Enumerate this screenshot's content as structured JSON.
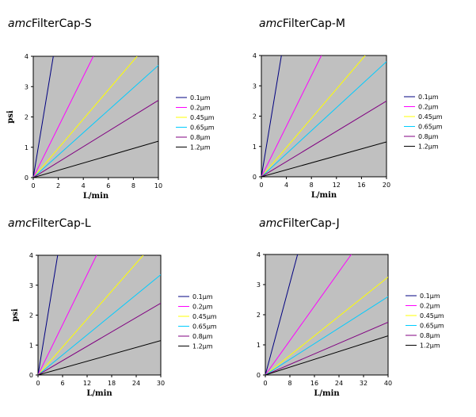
{
  "chart_data": [
    {
      "type": "line",
      "title_prefix": "amc",
      "title_main": "FilterCap-S",
      "xlabel": "L/min",
      "ylabel": "psi",
      "xlim": [
        0,
        10
      ],
      "ylim": [
        0,
        4
      ],
      "xticks": [
        0,
        2,
        4,
        6,
        8,
        10
      ],
      "yticks": [
        0,
        1,
        2,
        3,
        4
      ],
      "grid": false,
      "legend_position": "right",
      "series": [
        {
          "name": "0.1μm",
          "color": "#000080",
          "x": [
            0,
            1.6
          ],
          "y": [
            0,
            4
          ]
        },
        {
          "name": "0.2μm",
          "color": "#ff00ff",
          "x": [
            0,
            4.8
          ],
          "y": [
            0,
            4
          ]
        },
        {
          "name": "0.45μm",
          "color": "#ffff00",
          "x": [
            0,
            8.3
          ],
          "y": [
            0,
            4
          ]
        },
        {
          "name": "0.65μm",
          "color": "#00ccff",
          "x": [
            0,
            10
          ],
          "y": [
            0,
            3.7
          ]
        },
        {
          "name": "0.8μm",
          "color": "#800080",
          "x": [
            0,
            10
          ],
          "y": [
            0,
            2.55
          ]
        },
        {
          "name": "1.2μm",
          "color": "#000000",
          "x": [
            0,
            10
          ],
          "y": [
            0,
            1.2
          ]
        }
      ]
    },
    {
      "type": "line",
      "title_prefix": "amc",
      "title_main": "FilterCap-M",
      "xlabel": "L/min",
      "ylabel": "psi",
      "xlim": [
        0,
        20
      ],
      "ylim": [
        0,
        4
      ],
      "xticks": [
        0,
        4,
        8,
        12,
        16,
        20
      ],
      "yticks": [
        0,
        1,
        2,
        3,
        4
      ],
      "grid": false,
      "legend_position": "right",
      "series": [
        {
          "name": "0.1μm",
          "color": "#000080",
          "x": [
            0,
            3.2
          ],
          "y": [
            0,
            4
          ]
        },
        {
          "name": "0.2μm",
          "color": "#ff00ff",
          "x": [
            0,
            9.6
          ],
          "y": [
            0,
            4
          ]
        },
        {
          "name": "0.45μm",
          "color": "#ffff00",
          "x": [
            0,
            16.6
          ],
          "y": [
            0,
            4
          ]
        },
        {
          "name": "0.65μm",
          "color": "#00ccff",
          "x": [
            0,
            20
          ],
          "y": [
            0,
            3.8
          ]
        },
        {
          "name": "0.8μm",
          "color": "#800080",
          "x": [
            0,
            20
          ],
          "y": [
            0,
            2.5
          ]
        },
        {
          "name": "1.2μm",
          "color": "#000000",
          "x": [
            0,
            20
          ],
          "y": [
            0,
            1.15
          ]
        }
      ]
    },
    {
      "type": "line",
      "title_prefix": "amc",
      "title_main": "FilterCap-L",
      "xlabel": "L/min",
      "ylabel": "psi",
      "xlim": [
        0,
        30
      ],
      "ylim": [
        0,
        4
      ],
      "xticks": [
        0,
        6,
        12,
        18,
        24,
        30
      ],
      "yticks": [
        0,
        1,
        2,
        3,
        4
      ],
      "grid": false,
      "legend_position": "right",
      "series": [
        {
          "name": "0.1μm",
          "color": "#000080",
          "x": [
            0,
            4.8
          ],
          "y": [
            0,
            4
          ]
        },
        {
          "name": "0.2μm",
          "color": "#ff00ff",
          "x": [
            0,
            14.3
          ],
          "y": [
            0,
            4
          ]
        },
        {
          "name": "0.45μm",
          "color": "#ffff00",
          "x": [
            0,
            25.7
          ],
          "y": [
            0,
            4
          ]
        },
        {
          "name": "0.65μm",
          "color": "#00ccff",
          "x": [
            0,
            30
          ],
          "y": [
            0,
            3.35
          ]
        },
        {
          "name": "0.8μm",
          "color": "#800080",
          "x": [
            0,
            30
          ],
          "y": [
            0,
            2.4
          ]
        },
        {
          "name": "1.2μm",
          "color": "#000000",
          "x": [
            0,
            30
          ],
          "y": [
            0,
            1.15
          ]
        }
      ]
    },
    {
      "type": "line",
      "title_prefix": "amc",
      "title_main": "FilterCap-J",
      "xlabel": "L/min",
      "ylabel": "psi",
      "xlim": [
        0,
        40
      ],
      "ylim": [
        0,
        4
      ],
      "xticks": [
        0,
        8,
        16,
        24,
        32,
        40
      ],
      "yticks": [
        0,
        1,
        2,
        3,
        4
      ],
      "grid": false,
      "legend_position": "right",
      "series": [
        {
          "name": "0.1μm",
          "color": "#000080",
          "x": [
            0,
            10.5
          ],
          "y": [
            0,
            4
          ]
        },
        {
          "name": "0.2μm",
          "color": "#ff00ff",
          "x": [
            0,
            28
          ],
          "y": [
            0,
            4
          ]
        },
        {
          "name": "0.45μm",
          "color": "#ffff00",
          "x": [
            0,
            40
          ],
          "y": [
            0,
            3.25
          ]
        },
        {
          "name": "0.65μm",
          "color": "#00ccff",
          "x": [
            0,
            40
          ],
          "y": [
            0,
            2.6
          ]
        },
        {
          "name": "0.8μm",
          "color": "#800080",
          "x": [
            0,
            40
          ],
          "y": [
            0,
            1.75
          ]
        },
        {
          "name": "1.2μm",
          "color": "#000000",
          "x": [
            0,
            40
          ],
          "y": [
            0,
            1.3
          ]
        }
      ]
    }
  ],
  "style": {
    "plot_background": "#c0c0c0",
    "axis_color": "#000000"
  }
}
